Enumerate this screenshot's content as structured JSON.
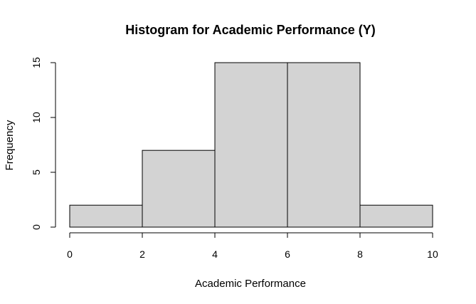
{
  "chart_data": {
    "type": "bar",
    "title": "Histogram for Academic Performance (Y)",
    "xlabel": "Academic Performance",
    "ylabel": "Frequency",
    "bins": [
      {
        "start": 0,
        "end": 2,
        "count": 2
      },
      {
        "start": 2,
        "end": 4,
        "count": 7
      },
      {
        "start": 4,
        "end": 6,
        "count": 15
      },
      {
        "start": 6,
        "end": 8,
        "count": 15
      },
      {
        "start": 8,
        "end": 10,
        "count": 2
      }
    ],
    "xlim": [
      0,
      10
    ],
    "ylim": [
      0,
      15
    ],
    "x_ticks": [
      "0",
      "2",
      "4",
      "6",
      "8",
      "10"
    ],
    "y_ticks": [
      "0",
      "5",
      "10",
      "15"
    ],
    "grid": false,
    "bar_color": "#d3d3d3",
    "edge_color": "#000000"
  }
}
